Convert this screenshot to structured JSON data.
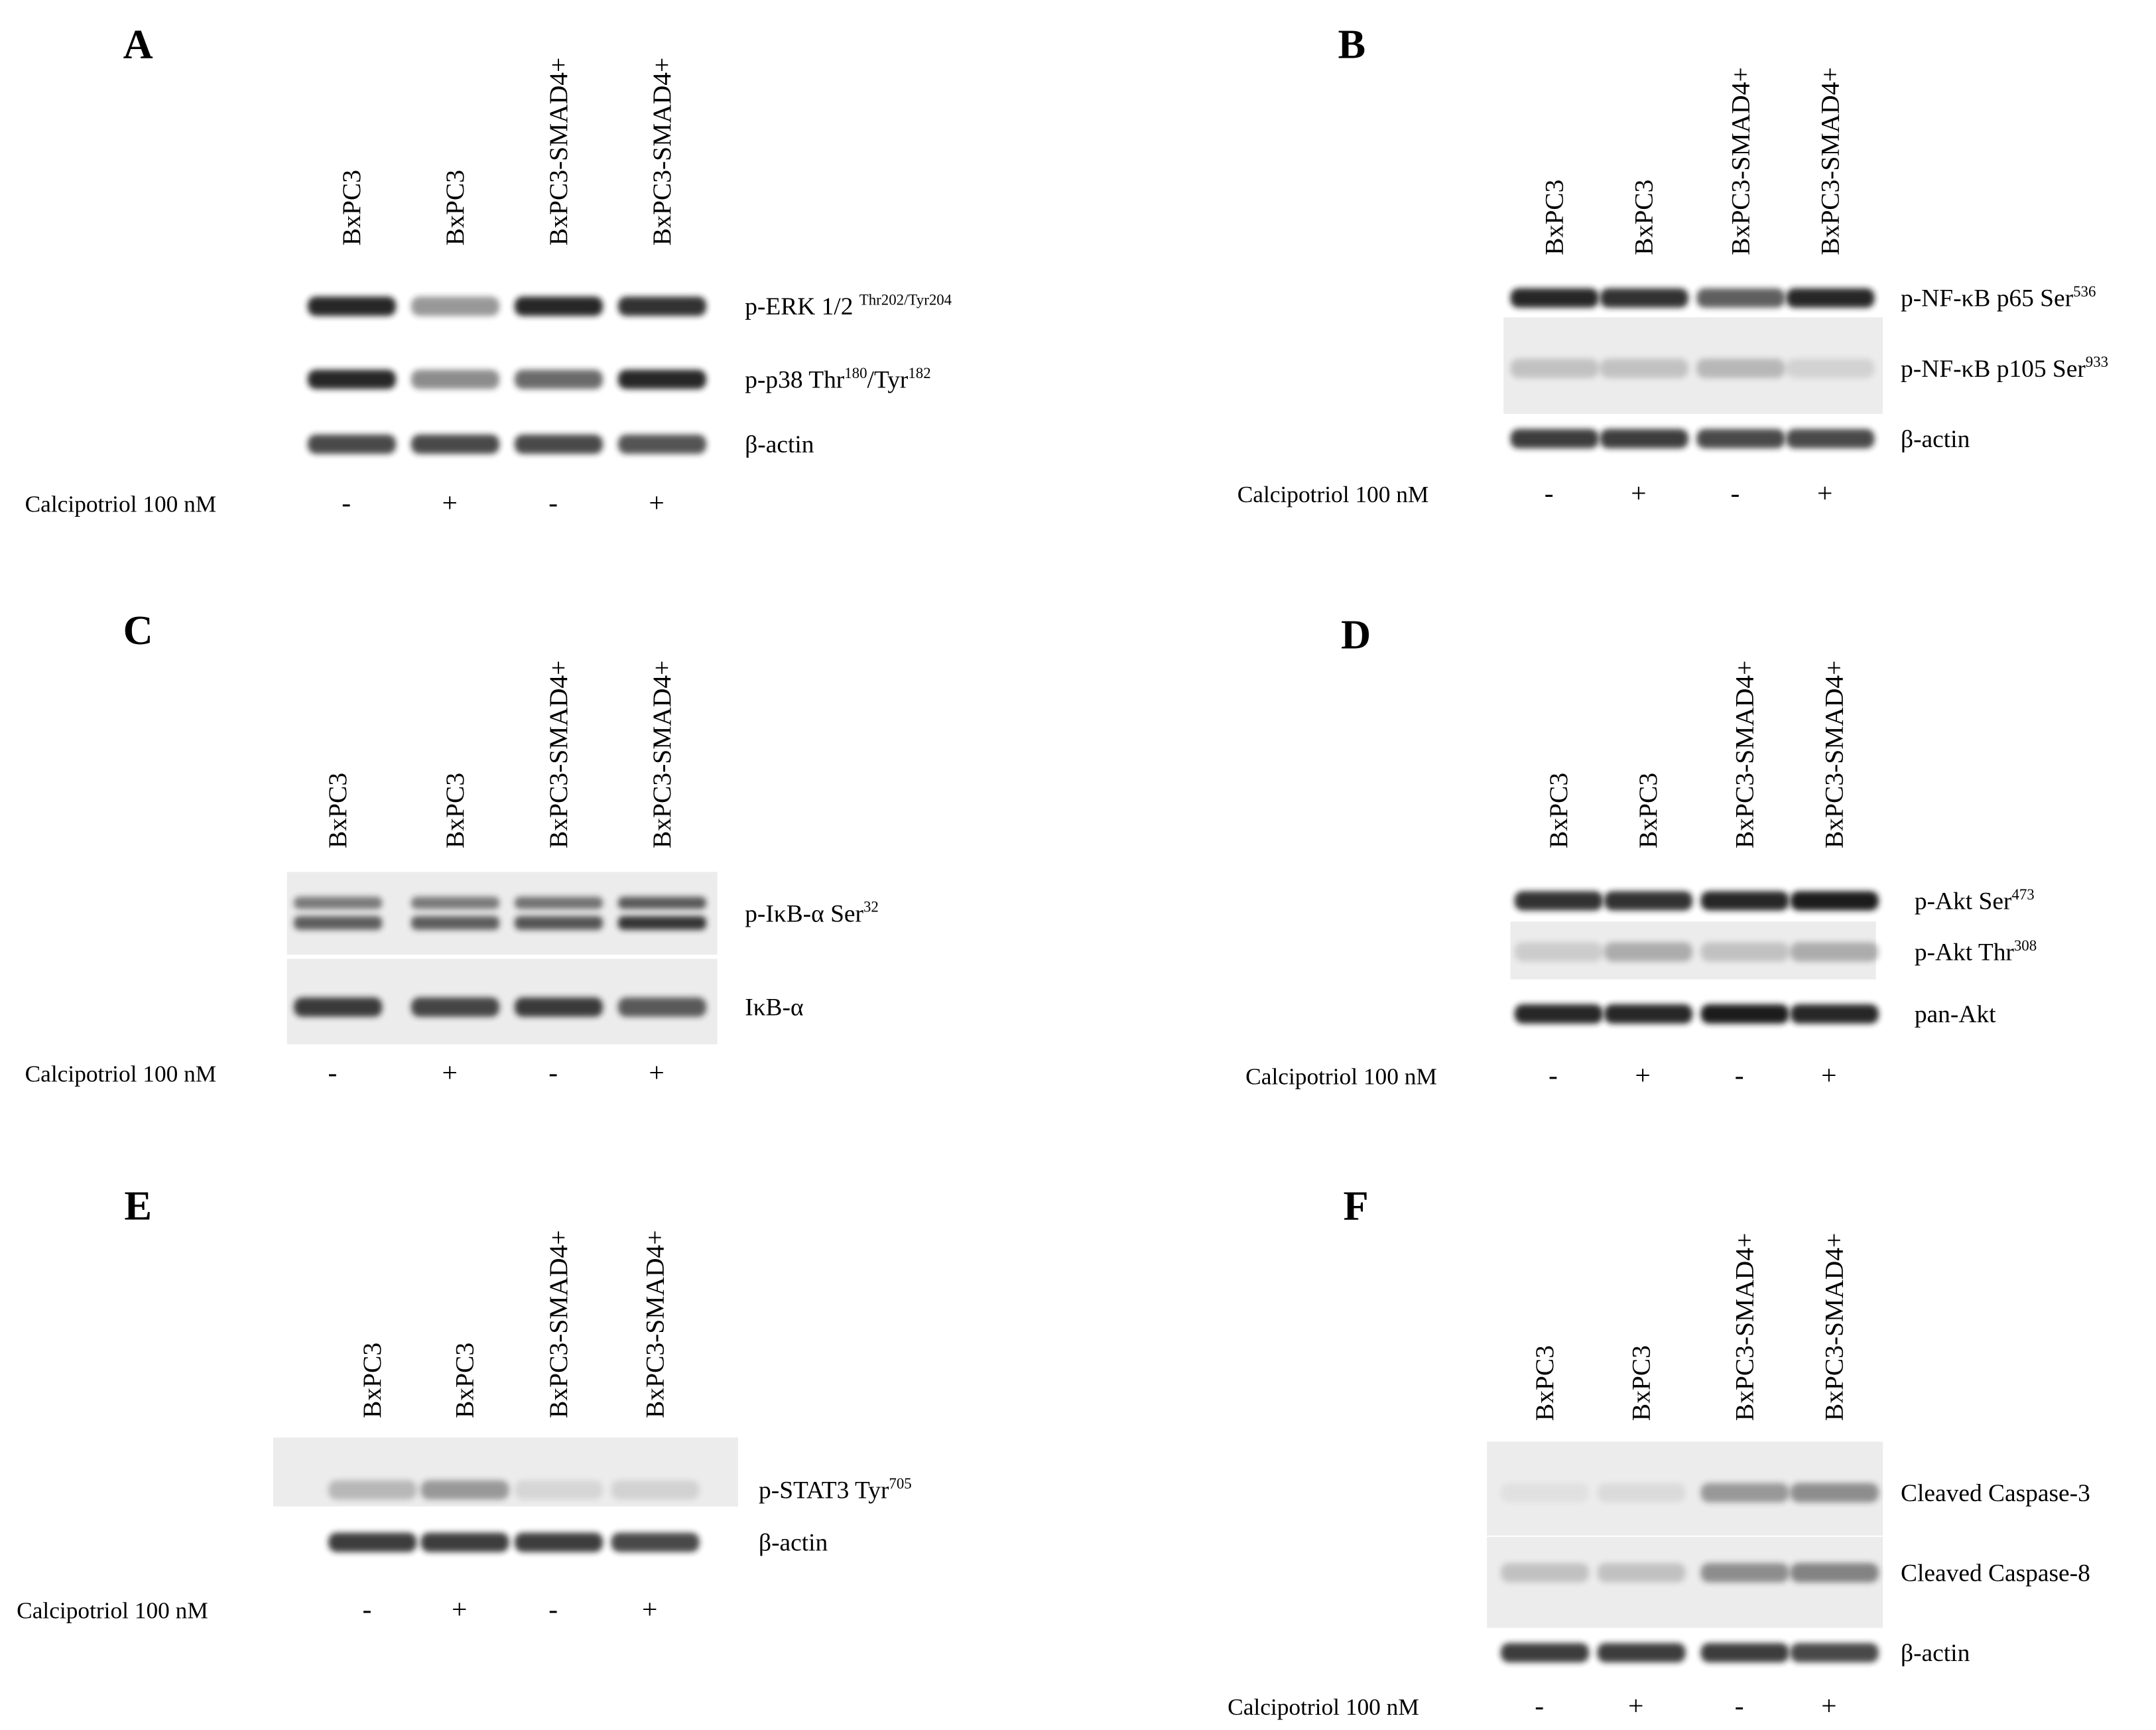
{
  "panels": [
    {
      "letter": "A",
      "lanes": [
        "BxPC3",
        "BxPC3",
        "BxPC3-SMAD4+",
        "BxPC3-SMAD4+"
      ],
      "blots": [
        [
          {
            "text": "p-ERK 1/2 ",
            "sup": "Thr202/Tyr204"
          }
        ],
        [
          {
            "text": "p-p38 Thr",
            "sup": "180"
          },
          {
            "text": "/Tyr",
            "sup": "182"
          }
        ],
        [
          {
            "text": "β-actin"
          }
        ]
      ],
      "treatment": {
        "label": "Calcipotriol 100 nM",
        "signs": [
          "-",
          "+",
          "-",
          "+"
        ]
      }
    },
    {
      "letter": "B",
      "lanes": [
        "BxPC3",
        "BxPC3",
        "BxPC3-SMAD4+",
        "BxPC3-SMAD4+"
      ],
      "blots": [
        [
          {
            "text": "p-NF-κB p65 Ser",
            "sup": "536"
          }
        ],
        [
          {
            "text": "p-NF-κB p105 Ser",
            "sup": "933"
          }
        ],
        [
          {
            "text": "β-actin"
          }
        ]
      ],
      "treatment": {
        "label": "Calcipotriol 100 nM",
        "signs": [
          "-",
          "+",
          "-",
          "+"
        ]
      }
    },
    {
      "letter": "C",
      "lanes": [
        "BxPC3",
        "BxPC3",
        "BxPC3-SMAD4+",
        "BxPC3-SMAD4+"
      ],
      "blots": [
        [
          {
            "text": "p-IκB-α Ser",
            "sup": "32"
          }
        ],
        [
          {
            "text": "IκB-α"
          }
        ]
      ],
      "treatment": {
        "label": "Calcipotriol 100 nM",
        "signs": [
          "-",
          "+",
          "-",
          "+"
        ]
      }
    },
    {
      "letter": "D",
      "lanes": [
        "BxPC3",
        "BxPC3",
        "BxPC3-SMAD4+",
        "BxPC3-SMAD4+"
      ],
      "blots": [
        [
          {
            "text": "p-Akt Ser",
            "sup": "473"
          }
        ],
        [
          {
            "text": "p-Akt Thr",
            "sup": "308"
          }
        ],
        [
          {
            "text": "pan-Akt"
          }
        ]
      ],
      "treatment": {
        "label": "Calcipotriol 100 nM",
        "signs": [
          "-",
          "+",
          "-",
          "+"
        ]
      }
    },
    {
      "letter": "E",
      "lanes": [
        "BxPC3",
        "BxPC3",
        "BxPC3-SMAD4+",
        "BxPC3-SMAD4+"
      ],
      "blots": [
        [
          {
            "text": "p-STAT3 Tyr",
            "sup": "705"
          }
        ],
        [
          {
            "text": "β-actin"
          }
        ]
      ],
      "treatment": {
        "label": "Calcipotriol 100 nM",
        "signs": [
          "-",
          "+",
          "-",
          "+"
        ]
      }
    },
    {
      "letter": "F",
      "lanes": [
        "BxPC3",
        "BxPC3",
        "BxPC3-SMAD4+",
        "BxPC3-SMAD4+"
      ],
      "blots": [
        [
          {
            "text": "Cleaved Caspase-3"
          }
        ],
        [
          {
            "text": "Cleaved Caspase-8"
          }
        ],
        [
          {
            "text": "β-actin"
          }
        ]
      ],
      "treatment": {
        "label": "Calcipotriol 100 nM",
        "signs": [
          "-",
          "+",
          "-",
          "+"
        ]
      }
    }
  ]
}
